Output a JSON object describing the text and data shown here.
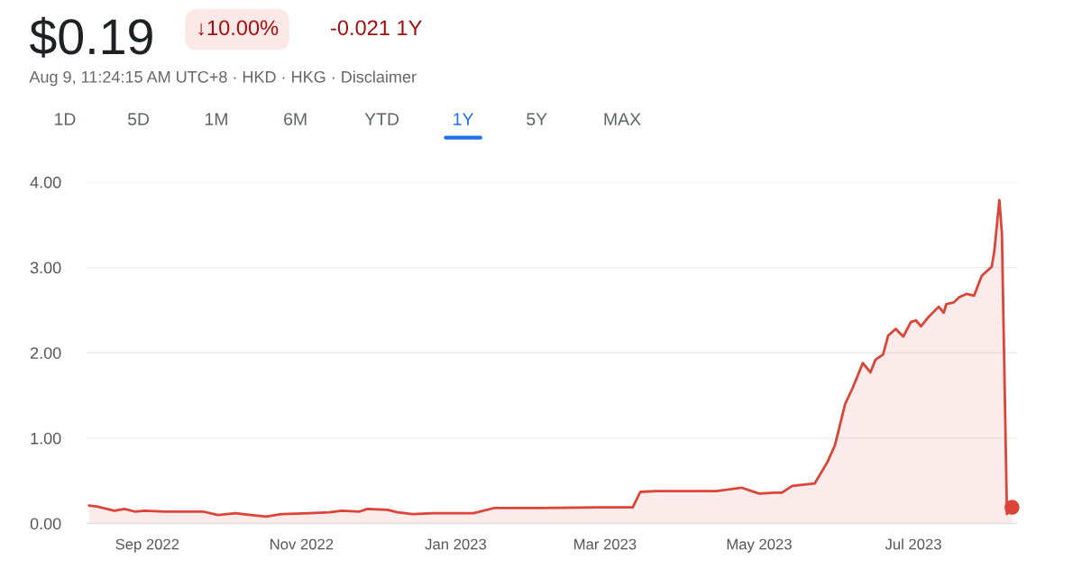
{
  "chart_data": {
    "type": "area",
    "title": "$0.19",
    "subtitle": "Aug 9, 11:24:15 AM UTC+8 · HKD · HKG · Disclaimer",
    "annotations": [
      "↓10.00%",
      "-0.021 1Y",
      "1D",
      "5D",
      "1M",
      "6M",
      "YTD",
      "1Y",
      "5Y",
      "MAX"
    ],
    "x": [
      "2022-08-09",
      "2022-08-12",
      "2022-08-19",
      "2022-08-23",
      "2022-08-27",
      "2022-08-31",
      "2022-09-08",
      "2022-09-23",
      "2022-09-29",
      "2022-10-06",
      "2022-10-12",
      "2022-10-18",
      "2022-10-24",
      "2022-11-04",
      "2022-11-12",
      "2022-11-17",
      "2022-11-24",
      "2022-11-27",
      "2022-12-05",
      "2022-12-09",
      "2022-12-15",
      "2022-12-23",
      "2023-01-08",
      "2023-01-16",
      "2023-02-03",
      "2023-02-26",
      "2023-03-12",
      "2023-03-15",
      "2023-03-21",
      "2023-04-03",
      "2023-04-14",
      "2023-04-24",
      "2023-05-01",
      "2023-05-07",
      "2023-05-10",
      "2023-05-14",
      "2023-05-23",
      "2023-05-28",
      "2023-05-31",
      "2023-06-04",
      "2023-06-07",
      "2023-06-11",
      "2023-06-14",
      "2023-06-16",
      "2023-06-19",
      "2023-06-21",
      "2023-06-24",
      "2023-06-27",
      "2023-06-30",
      "2023-07-02",
      "2023-07-04",
      "2023-07-07",
      "2023-07-11",
      "2023-07-13",
      "2023-07-14",
      "2023-07-17",
      "2023-07-19",
      "2023-07-22",
      "2023-07-25",
      "2023-07-28",
      "2023-08-01",
      "2023-08-02",
      "2023-08-04",
      "2023-08-05",
      "2023-08-07",
      "2023-08-08",
      "2023-08-09"
    ],
    "series": [
      {
        "color": "#db4437",
        "values": [
          0.21,
          0.2,
          0.15,
          0.17,
          0.14,
          0.15,
          0.14,
          0.14,
          0.1,
          0.12,
          0.1,
          0.08,
          0.11,
          0.12,
          0.13,
          0.15,
          0.14,
          0.17,
          0.16,
          0.13,
          0.11,
          0.12,
          0.12,
          0.18,
          0.18,
          0.19,
          0.19,
          0.37,
          0.38,
          0.38,
          0.38,
          0.42,
          0.35,
          0.36,
          0.36,
          0.44,
          0.47,
          0.72,
          0.92,
          1.4,
          1.59,
          1.88,
          1.77,
          1.92,
          1.98,
          2.2,
          2.28,
          2.19,
          2.36,
          2.38,
          2.31,
          2.42,
          2.54,
          2.47,
          2.57,
          2.59,
          2.65,
          2.69,
          2.67,
          2.9,
          3.01,
          3.19,
          3.79,
          3.4,
          0.11,
          0.21,
          0.19
        ]
      }
    ],
    "xlim": [
      "2022-08-08",
      "2023-08-11"
    ],
    "xticks": [
      {
        "value": "2022-09-01",
        "label": "Sep 2022"
      },
      {
        "value": "2022-11-01",
        "label": "Nov 2022"
      },
      {
        "value": "2023-01-01",
        "label": "Jan 2023"
      },
      {
        "value": "2023-03-01",
        "label": "Mar 2023"
      },
      {
        "value": "2023-05-01",
        "label": "May 2023"
      },
      {
        "value": "2023-07-01",
        "label": "Jul 2023"
      }
    ],
    "ylim": [
      0,
      4
    ],
    "yticks": [
      {
        "value": 0,
        "label": "0.00"
      },
      {
        "value": 1,
        "label": "1.00"
      },
      {
        "value": 2,
        "label": "2.00"
      },
      {
        "value": 3,
        "label": "3.00"
      },
      {
        "value": 4,
        "label": "4.00"
      }
    ],
    "grid": "y"
  }
}
